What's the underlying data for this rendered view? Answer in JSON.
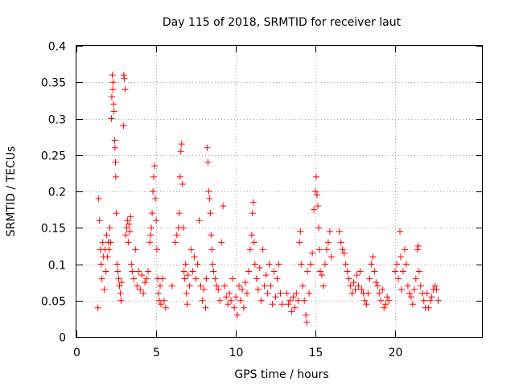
{
  "chart_data": {
    "type": "scatter",
    "title": "Day 115 of 2018, SRMTID for receiver laut",
    "xlabel": "GPS time / hours",
    "ylabel": "SRMTID / TECUs",
    "xlim": [
      0,
      25.5
    ],
    "ylim": [
      0,
      0.4
    ],
    "xticks": [
      0,
      5,
      10,
      15,
      20
    ],
    "xtick_labels": [
      "0",
      "5",
      "10",
      "15",
      "20"
    ],
    "yticks": [
      0,
      0.05,
      0.1,
      0.15,
      0.2,
      0.25,
      0.3,
      0.35,
      0.4
    ],
    "ytick_labels": [
      "0",
      "0.05",
      "0.1",
      "0.15",
      "0.2",
      "0.25",
      "0.3",
      "0.35",
      "0.4"
    ],
    "grid": true,
    "marker": "+",
    "color": "#ff0000",
    "series": [
      {
        "name": "SRMTID",
        "points": [
          [
            1.35,
            0.04
          ],
          [
            1.4,
            0.19
          ],
          [
            1.45,
            0.16
          ],
          [
            1.5,
            0.12
          ],
          [
            1.55,
            0.1
          ],
          [
            1.6,
            0.08
          ],
          [
            1.65,
            0.13
          ],
          [
            1.7,
            0.11
          ],
          [
            1.75,
            0.065
          ],
          [
            1.8,
            0.12
          ],
          [
            1.85,
            0.09
          ],
          [
            1.9,
            0.14
          ],
          [
            1.95,
            0.11
          ],
          [
            2.0,
            0.13
          ],
          [
            2.05,
            0.12
          ],
          [
            2.1,
            0.15
          ],
          [
            2.15,
            0.13
          ],
          [
            2.2,
            0.3
          ],
          [
            2.22,
            0.33
          ],
          [
            2.25,
            0.36
          ],
          [
            2.28,
            0.34
          ],
          [
            2.3,
            0.35
          ],
          [
            2.33,
            0.32
          ],
          [
            2.36,
            0.31
          ],
          [
            2.4,
            0.27
          ],
          [
            2.42,
            0.26
          ],
          [
            2.45,
            0.24
          ],
          [
            2.47,
            0.22
          ],
          [
            2.5,
            0.17
          ],
          [
            2.55,
            0.1
          ],
          [
            2.6,
            0.09
          ],
          [
            2.65,
            0.08
          ],
          [
            2.7,
            0.07
          ],
          [
            2.75,
            0.06
          ],
          [
            2.8,
            0.05
          ],
          [
            2.85,
            0.075
          ],
          [
            2.95,
            0.29
          ],
          [
            2.97,
            0.36
          ],
          [
            3.0,
            0.355
          ],
          [
            3.05,
            0.34
          ],
          [
            3.1,
            0.14
          ],
          [
            3.15,
            0.15
          ],
          [
            3.2,
            0.16
          ],
          [
            3.25,
            0.13
          ],
          [
            3.3,
            0.155
          ],
          [
            3.35,
            0.145
          ],
          [
            3.4,
            0.165
          ],
          [
            3.45,
            0.1
          ],
          [
            3.5,
            0.09
          ],
          [
            3.6,
            0.08
          ],
          [
            3.7,
            0.12
          ],
          [
            3.8,
            0.07
          ],
          [
            3.9,
            0.09
          ],
          [
            4.0,
            0.065
          ],
          [
            4.1,
            0.085
          ],
          [
            4.2,
            0.06
          ],
          [
            4.3,
            0.075
          ],
          [
            4.4,
            0.08
          ],
          [
            4.5,
            0.09
          ],
          [
            4.6,
            0.13
          ],
          [
            4.65,
            0.14
          ],
          [
            4.7,
            0.15
          ],
          [
            4.75,
            0.17
          ],
          [
            4.8,
            0.2
          ],
          [
            4.85,
            0.22
          ],
          [
            4.9,
            0.235
          ],
          [
            4.95,
            0.19
          ],
          [
            5.0,
            0.16
          ],
          [
            5.05,
            0.12
          ],
          [
            5.1,
            0.08
          ],
          [
            5.15,
            0.06
          ],
          [
            5.2,
            0.05
          ],
          [
            5.25,
            0.07
          ],
          [
            5.3,
            0.045
          ],
          [
            5.4,
            0.08
          ],
          [
            5.5,
            0.05
          ],
          [
            5.6,
            0.04
          ],
          [
            6.0,
            0.07
          ],
          [
            6.2,
            0.13
          ],
          [
            6.3,
            0.14
          ],
          [
            6.4,
            0.15
          ],
          [
            6.45,
            0.17
          ],
          [
            6.5,
            0.22
          ],
          [
            6.55,
            0.255
          ],
          [
            6.6,
            0.265
          ],
          [
            6.65,
            0.21
          ],
          [
            6.7,
            0.15
          ],
          [
            6.75,
            0.09
          ],
          [
            6.8,
            0.08
          ],
          [
            6.85,
            0.1
          ],
          [
            6.9,
            0.06
          ],
          [
            6.95,
            0.045
          ],
          [
            7.0,
            0.085
          ],
          [
            7.1,
            0.07
          ],
          [
            7.2,
            0.12
          ],
          [
            7.3,
            0.09
          ],
          [
            7.4,
            0.11
          ],
          [
            7.5,
            0.08
          ],
          [
            7.6,
            0.1
          ],
          [
            7.7,
            0.16
          ],
          [
            7.8,
            0.07
          ],
          [
            7.9,
            0.05
          ],
          [
            8.0,
            0.065
          ],
          [
            8.1,
            0.04
          ],
          [
            8.15,
            0.08
          ],
          [
            8.2,
            0.26
          ],
          [
            8.25,
            0.24
          ],
          [
            8.3,
            0.2
          ],
          [
            8.35,
            0.19
          ],
          [
            8.4,
            0.17
          ],
          [
            8.45,
            0.14
          ],
          [
            8.5,
            0.12
          ],
          [
            8.55,
            0.1
          ],
          [
            8.6,
            0.09
          ],
          [
            8.7,
            0.08
          ],
          [
            8.8,
            0.07
          ],
          [
            8.9,
            0.065
          ],
          [
            9.0,
            0.05
          ],
          [
            9.1,
            0.13
          ],
          [
            9.2,
            0.18
          ],
          [
            9.3,
            0.07
          ],
          [
            9.4,
            0.055
          ],
          [
            9.5,
            0.045
          ],
          [
            9.6,
            0.06
          ],
          [
            9.7,
            0.05
          ],
          [
            9.8,
            0.08
          ],
          [
            9.9,
            0.04
          ],
          [
            10.0,
            0.055
          ],
          [
            10.1,
            0.03
          ],
          [
            10.2,
            0.07
          ],
          [
            10.3,
            0.05
          ],
          [
            10.4,
            0.065
          ],
          [
            10.5,
            0.04
          ],
          [
            10.6,
            0.075
          ],
          [
            10.7,
            0.06
          ],
          [
            10.8,
            0.09
          ],
          [
            10.9,
            0.12
          ],
          [
            11.0,
            0.14
          ],
          [
            11.05,
            0.17
          ],
          [
            11.1,
            0.185
          ],
          [
            11.15,
            0.13
          ],
          [
            11.2,
            0.1
          ],
          [
            11.3,
            0.08
          ],
          [
            11.4,
            0.065
          ],
          [
            11.5,
            0.095
          ],
          [
            11.6,
            0.05
          ],
          [
            11.7,
            0.12
          ],
          [
            11.8,
            0.07
          ],
          [
            11.9,
            0.085
          ],
          [
            12.0,
            0.06
          ],
          [
            12.1,
            0.1
          ],
          [
            12.2,
            0.07
          ],
          [
            12.3,
            0.045
          ],
          [
            12.4,
            0.09
          ],
          [
            12.5,
            0.055
          ],
          [
            12.6,
            0.08
          ],
          [
            12.7,
            0.1
          ],
          [
            12.8,
            0.06
          ],
          [
            12.9,
            0.045
          ],
          [
            13.2,
            0.06
          ],
          [
            13.3,
            0.045
          ],
          [
            13.4,
            0.05
          ],
          [
            13.5,
            0.035
          ],
          [
            13.6,
            0.055
          ],
          [
            13.7,
            0.04
          ],
          [
            13.8,
            0.06
          ],
          [
            13.9,
            0.05
          ],
          [
            14.0,
            0.13
          ],
          [
            14.05,
            0.145
          ],
          [
            14.1,
            0.1
          ],
          [
            14.2,
            0.07
          ],
          [
            14.3,
            0.05
          ],
          [
            14.4,
            0.03
          ],
          [
            14.45,
            0.02
          ],
          [
            14.5,
            0.09
          ],
          [
            14.6,
            0.06
          ],
          [
            14.7,
            0.1
          ],
          [
            14.8,
            0.115
          ],
          [
            14.9,
            0.175
          ],
          [
            15.0,
            0.2
          ],
          [
            15.05,
            0.22
          ],
          [
            15.1,
            0.195
          ],
          [
            15.15,
            0.18
          ],
          [
            15.2,
            0.15
          ],
          [
            15.25,
            0.12
          ],
          [
            15.3,
            0.09
          ],
          [
            15.4,
            0.085
          ],
          [
            15.5,
            0.07
          ],
          [
            15.6,
            0.1
          ],
          [
            15.7,
            0.12
          ],
          [
            15.8,
            0.13
          ],
          [
            15.9,
            0.145
          ],
          [
            16.0,
            0.11
          ],
          [
            16.5,
            0.145
          ],
          [
            16.6,
            0.13
          ],
          [
            16.7,
            0.12
          ],
          [
            16.8,
            0.115
          ],
          [
            16.9,
            0.1
          ],
          [
            17.0,
            0.09
          ],
          [
            17.1,
            0.08
          ],
          [
            17.2,
            0.07
          ],
          [
            17.3,
            0.06
          ],
          [
            17.4,
            0.075
          ],
          [
            17.5,
            0.065
          ],
          [
            17.6,
            0.085
          ],
          [
            17.7,
            0.07
          ],
          [
            17.8,
            0.09
          ],
          [
            17.9,
            0.065
          ],
          [
            18.0,
            0.06
          ],
          [
            18.1,
            0.05
          ],
          [
            18.2,
            0.045
          ],
          [
            18.3,
            0.06
          ],
          [
            18.4,
            0.08
          ],
          [
            18.5,
            0.1
          ],
          [
            18.6,
            0.11
          ],
          [
            18.7,
            0.09
          ],
          [
            18.8,
            0.075
          ],
          [
            18.9,
            0.07
          ],
          [
            19.0,
            0.06
          ],
          [
            19.1,
            0.05
          ],
          [
            19.2,
            0.065
          ],
          [
            19.3,
            0.04
          ],
          [
            19.4,
            0.045
          ],
          [
            19.5,
            0.055
          ],
          [
            19.6,
            0.05
          ],
          [
            20.0,
            0.09
          ],
          [
            20.1,
            0.1
          ],
          [
            20.2,
            0.08
          ],
          [
            20.3,
            0.145
          ],
          [
            20.35,
            0.11
          ],
          [
            20.4,
            0.065
          ],
          [
            20.5,
            0.09
          ],
          [
            20.6,
            0.12
          ],
          [
            20.7,
            0.1
          ],
          [
            20.8,
            0.07
          ],
          [
            20.9,
            0.06
          ],
          [
            21.0,
            0.055
          ],
          [
            21.1,
            0.045
          ],
          [
            21.2,
            0.065
          ],
          [
            21.3,
            0.08
          ],
          [
            21.4,
            0.12
          ],
          [
            21.45,
            0.125
          ],
          [
            21.5,
            0.09
          ],
          [
            21.6,
            0.07
          ],
          [
            21.7,
            0.06
          ],
          [
            21.8,
            0.05
          ],
          [
            21.9,
            0.04
          ],
          [
            22.0,
            0.06
          ],
          [
            22.1,
            0.04
          ],
          [
            22.2,
            0.05
          ],
          [
            22.3,
            0.055
          ],
          [
            22.4,
            0.065
          ],
          [
            22.5,
            0.07
          ],
          [
            22.6,
            0.065
          ],
          [
            22.7,
            0.05
          ]
        ]
      }
    ]
  }
}
